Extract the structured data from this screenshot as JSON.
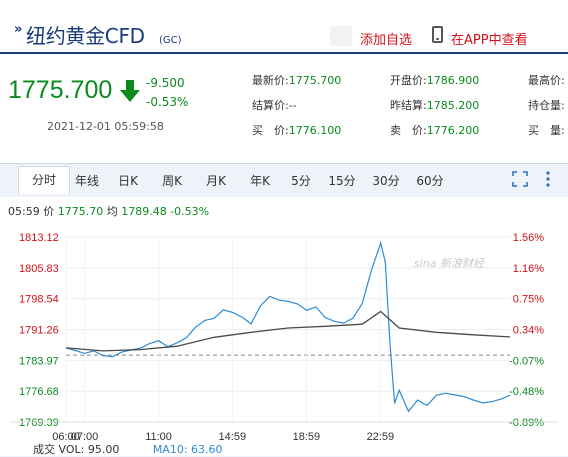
{
  "header": {
    "title": "纽约黄金CFD",
    "title_suffix": "(GC)",
    "add_watchlist": "添加自选",
    "open_app": "在APP中查看"
  },
  "quote": {
    "price": "1775.700",
    "change": "-9.500",
    "change_pct": "-0.53%",
    "timestamp": "2021-12-01 05:59:58",
    "fields": [
      {
        "label": "最新价:",
        "value": "1775.700",
        "color": "green"
      },
      {
        "label": "开盘价:",
        "value": "1786.900",
        "color": "green"
      },
      {
        "label": "最高价:",
        "value": "",
        "color": "gray"
      },
      {
        "label": "结算价:",
        "value": "--",
        "color": "gray"
      },
      {
        "label": "昨结算:",
        "value": "1785.200",
        "color": "green"
      },
      {
        "label": "持仓量:",
        "value": "",
        "color": "gray"
      },
      {
        "label": "买　价:",
        "value": "1776.100",
        "color": "green"
      },
      {
        "label": "卖　价:",
        "value": "1776.200",
        "color": "green"
      },
      {
        "label": "买　量:",
        "value": "",
        "color": "gray"
      }
    ]
  },
  "tabs": [
    "分时",
    "年线",
    "日K",
    "周K",
    "月K",
    "年K",
    "5分",
    "15分",
    "30分",
    "60分"
  ],
  "active_tab": "分时",
  "stats": {
    "time": "05:59",
    "price_label": "价",
    "price": "1775.70",
    "avg_label": "均",
    "avg": "1789.48",
    "change_pct": "-0.53%"
  },
  "watermark": "sina 新浪财经",
  "volume": {
    "label": "成交",
    "vol": "VOL: 95.00",
    "ma10": "MA10: 63.60"
  },
  "colors": {
    "up": "#d1121b",
    "down": "#0b8a1e",
    "price_line": "#2d8ad6",
    "avg_line": "#4a4a4a",
    "brand": "#1a3a7a"
  },
  "chart_data": {
    "type": "line",
    "y_ticks": [
      "1813.12",
      "1805.83",
      "1798.54",
      "1791.26",
      "1783.97",
      "1776.68",
      "1769.39"
    ],
    "y_ticks_pct": [
      "1.56%",
      "1.16%",
      "0.75%",
      "0.34%",
      "-0.07%",
      "-0.48%",
      "-0.89%"
    ],
    "x_ticks": [
      "07:00",
      "11:00",
      "14:59",
      "18:59",
      "22:59",
      "06:00"
    ],
    "ylim": [
      1769.39,
      1813.12
    ],
    "reference": 1785.2,
    "series": [
      {
        "name": "价",
        "x": [
          "06:00",
          "06:30",
          "07:00",
          "07:30",
          "08:00",
          "08:30",
          "09:00",
          "09:30",
          "10:00",
          "10:30",
          "11:00",
          "11:30",
          "12:00",
          "12:30",
          "13:00",
          "13:30",
          "14:00",
          "14:30",
          "15:00",
          "15:30",
          "16:00",
          "16:30",
          "17:00",
          "17:30",
          "18:00",
          "18:30",
          "19:00",
          "19:30",
          "20:00",
          "20:30",
          "21:00",
          "21:30",
          "22:00",
          "22:30",
          "23:00",
          "23:15",
          "23:30",
          "23:45",
          "00:00",
          "00:30",
          "01:00",
          "01:30",
          "02:00",
          "02:30",
          "03:00",
          "03:30",
          "04:00",
          "04:30",
          "05:00",
          "05:30",
          "05:59"
        ],
        "values": [
          1786.9,
          1786.3,
          1785.6,
          1786.2,
          1785.1,
          1784.8,
          1785.9,
          1786.4,
          1786.8,
          1787.9,
          1788.6,
          1787.2,
          1788.1,
          1789.3,
          1791.8,
          1793.4,
          1793.9,
          1795.9,
          1795.3,
          1794.2,
          1792.6,
          1796.8,
          1799.1,
          1798.2,
          1797.9,
          1797.3,
          1795.8,
          1796.6,
          1794.1,
          1793.2,
          1792.8,
          1793.9,
          1797.4,
          1805.3,
          1811.7,
          1807.2,
          1787.8,
          1773.8,
          1776.9,
          1771.9,
          1774.6,
          1773.3,
          1775.7,
          1776.2,
          1775.8,
          1775.4,
          1774.6,
          1773.9,
          1774.2,
          1774.8,
          1775.7
        ]
      },
      {
        "name": "均",
        "x": [
          "06:00",
          "08:00",
          "10:00",
          "12:00",
          "14:00",
          "16:00",
          "18:00",
          "20:00",
          "22:00",
          "23:00",
          "00:00",
          "02:00",
          "04:00",
          "05:59"
        ],
        "values": [
          1786.9,
          1786.2,
          1786.5,
          1787.3,
          1789.4,
          1790.6,
          1791.6,
          1792.0,
          1792.5,
          1795.5,
          1791.6,
          1790.6,
          1790.0,
          1789.5
        ]
      }
    ]
  }
}
